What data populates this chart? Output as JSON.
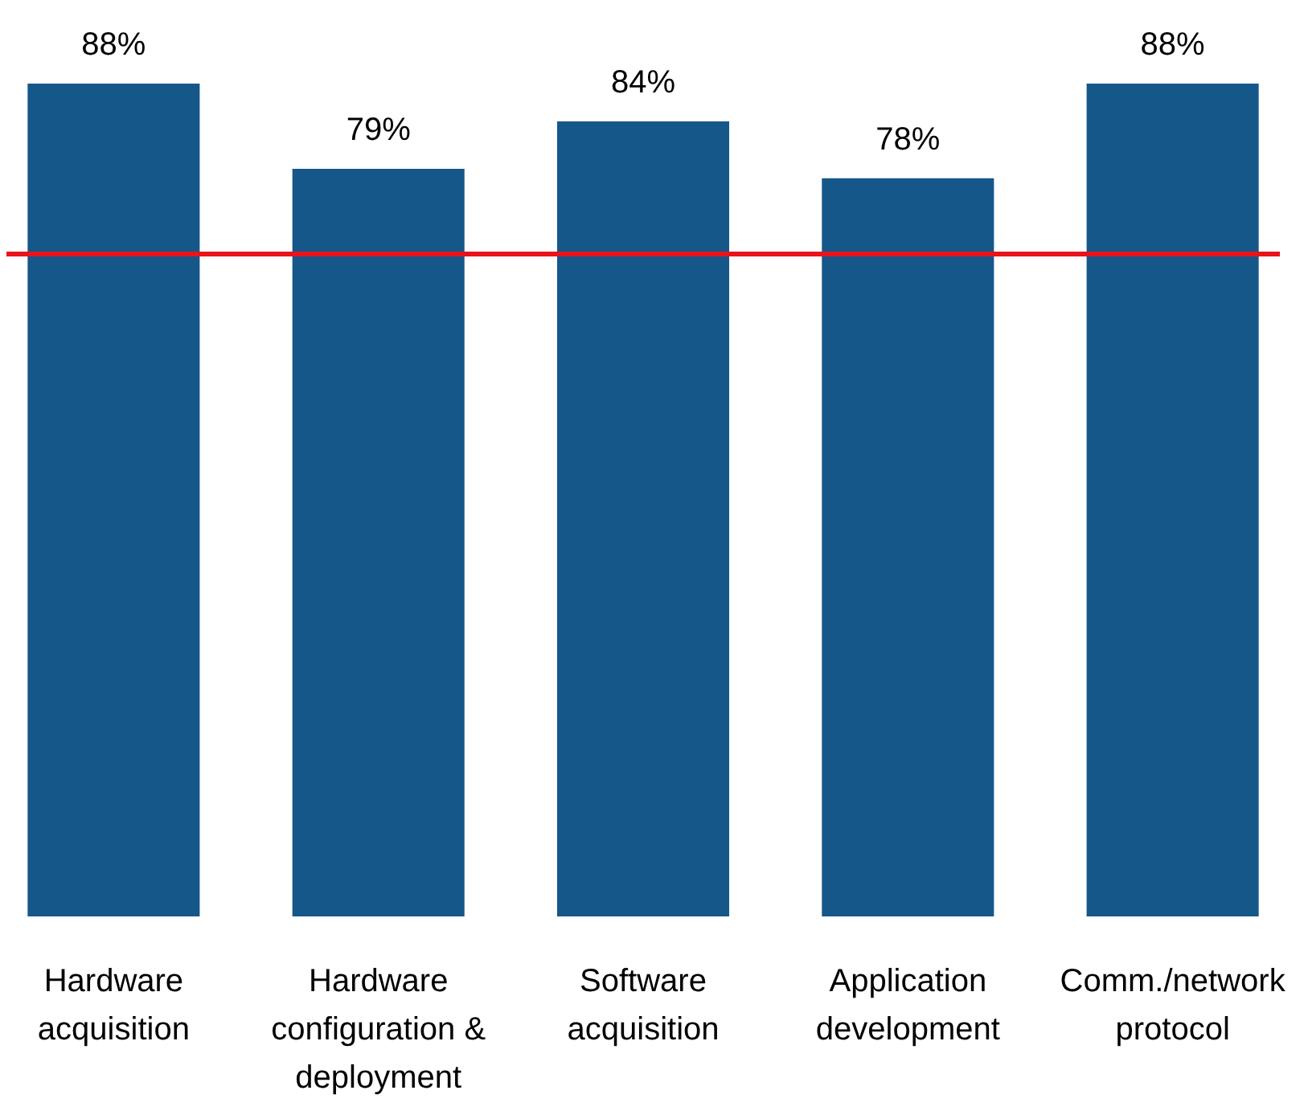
{
  "chart_data": {
    "type": "bar",
    "categories": [
      "Hardware acquisition",
      "Hardware configuration & deployment",
      "Software acquisition",
      "Application development",
      "Comm./network protocol"
    ],
    "values": [
      88,
      79,
      84,
      78,
      88
    ],
    "color": "#16578a",
    "ylim": [
      0,
      88
    ],
    "data_labels": true,
    "value_labels": [
      "88%",
      "79%",
      "84%",
      "78%",
      "88%"
    ],
    "grid": false,
    "ref_lines": [
      {
        "axis": "y",
        "value": 70,
        "color": "#e8141a"
      }
    ]
  }
}
